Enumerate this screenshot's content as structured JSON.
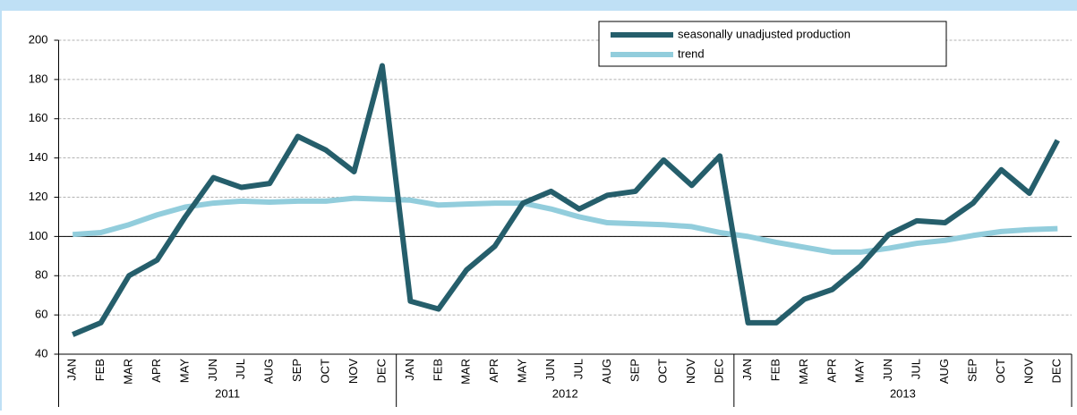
{
  "chart_data": {
    "type": "line",
    "categories": [
      "JAN",
      "FEB",
      "MAR",
      "APR",
      "MAY",
      "JUN",
      "JUL",
      "AUG",
      "SEP",
      "OCT",
      "NOV",
      "DEC",
      "JAN",
      "FEB",
      "MAR",
      "APR",
      "MAY",
      "JUN",
      "JUL",
      "AUG",
      "SEP",
      "OCT",
      "NOV",
      "DEC",
      "JAN",
      "FEB",
      "MAR",
      "APR",
      "MAY",
      "JUN",
      "JUL",
      "AUG",
      "SEP",
      "OCT",
      "NOV",
      "DEC"
    ],
    "category_groups": [
      "2011",
      "2012",
      "2013"
    ],
    "series": [
      {
        "name": "seasonally unadjusted production",
        "color": "#255e6b",
        "values": [
          50,
          56,
          80,
          88,
          110,
          130,
          125,
          127,
          151,
          144,
          133,
          187,
          67,
          63,
          83,
          95,
          117,
          123,
          114,
          121,
          123,
          139,
          126,
          141,
          56,
          56,
          68,
          73,
          85,
          101,
          108,
          107,
          117,
          134,
          122,
          149
        ]
      },
      {
        "name": "trend",
        "color": "#92cddc",
        "values": [
          101,
          102,
          106,
          111,
          115,
          117,
          118,
          117.5,
          118,
          118,
          119.5,
          119,
          118.5,
          116,
          116.5,
          117,
          117,
          114,
          110,
          107,
          106.5,
          106,
          105,
          102,
          100,
          97,
          94.5,
          92,
          92,
          94,
          96.5,
          98,
          100.5,
          102.5,
          103.5,
          104
        ]
      }
    ],
    "ylim": [
      40,
      200
    ],
    "yticks": [
      40,
      60,
      80,
      100,
      120,
      140,
      160,
      180,
      200
    ],
    "grid": true,
    "baseline": 100,
    "legend": "top-right"
  }
}
